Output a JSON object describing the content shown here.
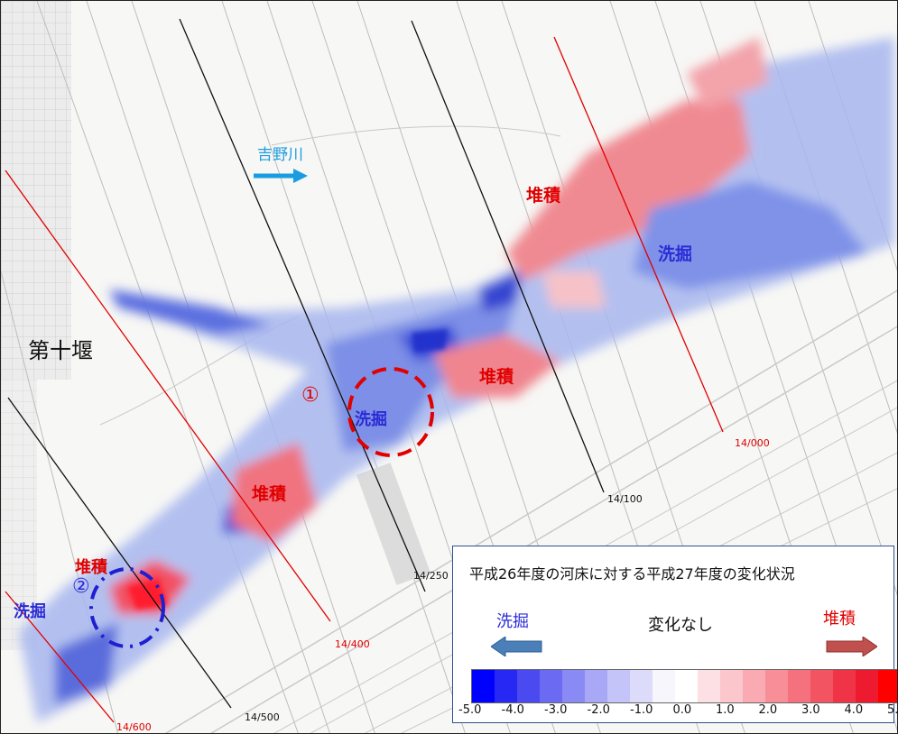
{
  "river_label": "吉野川",
  "weir_label": "第十堰",
  "annotations": [
    {
      "text": "堆積",
      "type": "deposition"
    },
    {
      "text": "洗掘",
      "type": "scour"
    },
    {
      "text": "堆積",
      "type": "deposition"
    },
    {
      "text": "洗掘",
      "type": "scour"
    },
    {
      "text": "堆積",
      "type": "deposition"
    },
    {
      "text": "堆積",
      "type": "deposition"
    },
    {
      "text": "洗掘",
      "type": "scour"
    }
  ],
  "markers": [
    "①",
    "②"
  ],
  "distance_labels": [
    "14/000",
    "14/100",
    "14/250",
    "14/400",
    "14/500",
    "14/600"
  ],
  "legend": {
    "title": "平成26年度の河床に対する平成27年度の変化状況",
    "scour_label": "洗掘",
    "no_change_label": "変化なし",
    "deposition_label": "堆積",
    "ticks": [
      "-5.0",
      "-4.0",
      "-3.0",
      "-2.0",
      "-1.0",
      "0.0",
      "1.0",
      "2.0",
      "3.0",
      "4.0",
      "5.0"
    ],
    "colors": [
      "#0000ff",
      "#2828f5",
      "#4a4af0",
      "#6a6af2",
      "#8a8af4",
      "#a8a8f6",
      "#c4c4f8",
      "#dcdcfa",
      "#f6f6fc",
      "#ffffff",
      "#fde0e3",
      "#fbc6cc",
      "#f9aab2",
      "#f78e98",
      "#f5717e",
      "#f35462",
      "#f03448",
      "#ee1a30",
      "#ff0000"
    ]
  },
  "colors": {
    "deposition": "#e00000",
    "scour": "#2b2bd6",
    "river_arrow": "#1a9de0",
    "legend_scour_arrow": "#4a7fb8",
    "legend_deposition_arrow": "#c0504d"
  }
}
